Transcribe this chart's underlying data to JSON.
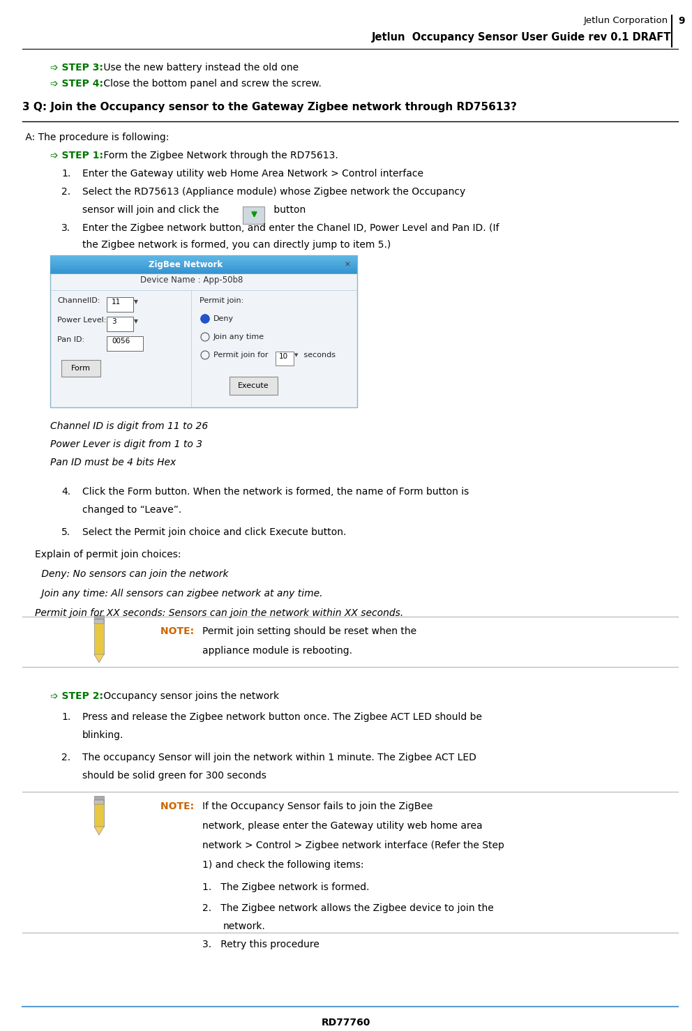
{
  "page_width": 9.92,
  "page_height": 14.78,
  "bg_color": "#ffffff",
  "header_text1": "Jetlun Corporation",
  "header_text2": "Jetlun  Occupancy Sensor User Guide rev 0.1 DRAFT",
  "header_page_num": "9",
  "footer_text": "RD77760",
  "footer_line_color": "#5b9bd5",
  "green_color": "#007700",
  "orange_color": "#cc6600",
  "step3_label": "➩ STEP 3:",
  "step3_text": " Use the new battery instead the old one",
  "step4_label": "➩ STEP 4:",
  "step4_text": " Close the bottom panel and screw the screw.",
  "section_title": "3 Q: Join the Occupancy sensor to the Gateway Zigbee network through RD75613?",
  "proc_intro": " A: The procedure is following:",
  "step1_label": "➩ STEP 1:",
  "step1_text": " Form the Zigbee Network through the RD75613.",
  "item1_text": "Enter the Gateway utility web Home Area Network > Control interface",
  "item2a_text": "Select the RD75613 (Appliance module) whose Zigbee network the Occupancy",
  "item2b_text": "sensor will join and click the",
  "item2c_text": " button",
  "item3a_text": "Enter the Zigbee network button, and enter the Chanel ID, Power Level and Pan ID. (If",
  "item3b_text": "the Zigbee network is formed, you can directly jump to item 5.)",
  "zigbee_dialog_title": "ZigBee Network",
  "dialog_device": "Device Name : App-50b8",
  "dialog_channel_lbl": "ChannelID:",
  "dialog_channel_val": "11",
  "dialog_power_lbl": "Power Level:",
  "dialog_power_val": "3",
  "dialog_panid_lbl": "Pan ID:",
  "dialog_panid_val": "0056",
  "dialog_form_btn": "Form",
  "dialog_permit_lbl": "Permit join:",
  "dialog_deny": "Deny",
  "dialog_join_any": "Join any time",
  "dialog_permit_for": "Permit join for",
  "dialog_seconds_val": "10",
  "dialog_seconds": " seconds",
  "dialog_execute_btn": "Execute",
  "italic_line1": "Channel ID is digit from 11 to 26",
  "italic_line2": "Power Lever is digit from 1 to 3",
  "italic_line3": "Pan ID must be 4 bits Hex",
  "item4a_text": "Click the Form button. When the network is formed, the name of Form button is",
  "item4b_text": "changed to “Leave”.",
  "item5_text": "Select the Permit join choice and click Execute button.",
  "explain_text": "Explain of permit join choices:",
  "deny_italic": " Deny: No sensors can join the network",
  "joinany_italic": " Join any time: All sensors can zigbee network at any time.",
  "permitfor_italic": "Permit join for XX seconds: Sensors can join the network within XX seconds.",
  "note1_label": "NOTE:  ",
  "note1_line1": "Permit join setting should be reset when the",
  "note1_line2": "appliance module is rebooting.",
  "step2_label": "➩ STEP 2:",
  "step2_text": " Occupancy sensor joins the network",
  "s2_item1a": "Press and release the Zigbee network button once. The Zigbee ACT LED should be",
  "s2_item1b": "blinking.",
  "s2_item2a": "The occupancy Sensor will join the network within 1 minute. The Zigbee ACT LED",
  "s2_item2b": "should be solid green for 300 seconds",
  "note2_label": "NOTE:  ",
  "note2_line1": "If the Occupancy Sensor fails to join the ZigBee",
  "note2_line2": "network, please enter the Gateway utility web home area",
  "note2_line3": "network > Control > Zigbee network interface (Refer the Step",
  "note2_line4": "1) and check the following items:",
  "note2_item1": "The Zigbee network is formed.",
  "note2_item2a": "The Zigbee network allows the Zigbee device to join the",
  "note2_item2b": "network.",
  "note2_item3": "Retry this procedure"
}
